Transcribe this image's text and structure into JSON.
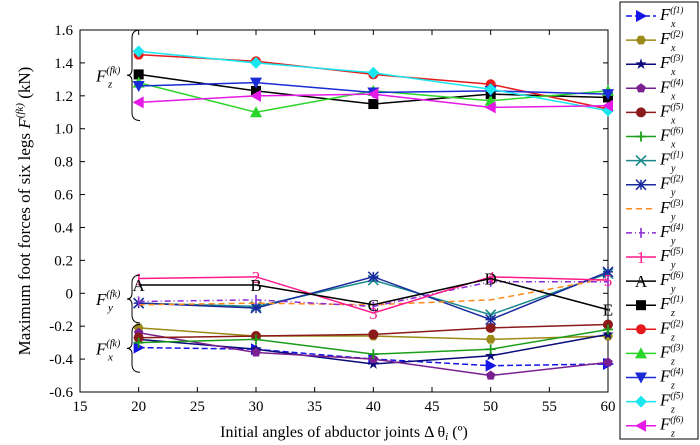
{
  "chart_data": {
    "type": "line",
    "title": "",
    "xlabel": "Initial angles of abductor joints Δ θ",
    "xlabel_sub": "i",
    "xlabel_unit": " (º)",
    "ylabel_main": "Maximum foot forces of six legs ",
    "ylabel_F": "F",
    "ylabel_sup": "(fk)",
    "ylabel_unit": " (kN)",
    "x": [
      20,
      30,
      40,
      50,
      60
    ],
    "xlim": [
      15,
      60
    ],
    "ylim": [
      -0.6,
      1.6
    ],
    "xticks": [
      "15",
      "20",
      "25",
      "30",
      "35",
      "40",
      "45",
      "50",
      "55",
      "60"
    ],
    "yticks": [
      "-0.6",
      "-0.4",
      "-0.2",
      "0",
      "0.2",
      "0.4",
      "0.6",
      "0.8",
      "1.0",
      "1.2",
      "1.4",
      "1.6"
    ],
    "groups": [
      {
        "base": "F",
        "sub": "z",
        "sup": "(fk)"
      },
      {
        "base": "F",
        "sub": "y",
        "sup": "(fk)"
      },
      {
        "base": "F",
        "sub": "x",
        "sup": "(fk)"
      }
    ],
    "series": [
      {
        "name": "F_x(f1)",
        "base": "F",
        "sub": "x",
        "sup": "(f1)",
        "color": "#1515e6",
        "marker": "triright",
        "dash": "6,3",
        "values": [
          -0.33,
          -0.34,
          -0.4,
          -0.44,
          -0.43
        ]
      },
      {
        "name": "F_x(f2)",
        "base": "F",
        "sub": "x",
        "sup": "(f2)",
        "color": "#9b8a17",
        "marker": "hexagon",
        "dash": "",
        "values": [
          -0.21,
          -0.26,
          -0.26,
          -0.28,
          -0.26
        ]
      },
      {
        "name": "F_x(f3)",
        "base": "F",
        "sub": "x",
        "sup": "(f3)",
        "color": "#0a0a7a",
        "marker": "star",
        "dash": "",
        "values": [
          -0.28,
          -0.34,
          -0.43,
          -0.38,
          -0.25
        ]
      },
      {
        "name": "F_x(f4)",
        "base": "F",
        "sub": "x",
        "sup": "(f4)",
        "color": "#7a2090",
        "marker": "pentagon",
        "dash": "",
        "values": [
          -0.24,
          -0.36,
          -0.4,
          -0.5,
          -0.42
        ]
      },
      {
        "name": "F_x(f5)",
        "base": "F",
        "sub": "x",
        "sup": "(f5)",
        "color": "#8b1a1a",
        "marker": "circle",
        "dash": "",
        "values": [
          -0.27,
          -0.26,
          -0.25,
          -0.21,
          -0.19
        ]
      },
      {
        "name": "F_x(f6)",
        "base": "F",
        "sub": "x",
        "sup": "(f6)",
        "color": "#1a9e1a",
        "marker": "plus",
        "dash": "",
        "values": [
          -0.3,
          -0.28,
          -0.37,
          -0.34,
          -0.22
        ]
      },
      {
        "name": "F_y(f1)",
        "base": "F",
        "sub": "y",
        "sup": "(f1)",
        "color": "#1a8a8a",
        "marker": "cross",
        "dash": "",
        "values": [
          -0.06,
          -0.08,
          0.08,
          -0.13,
          0.12
        ]
      },
      {
        "name": "F_y(f2)",
        "base": "F",
        "sub": "y",
        "sup": "(f2)",
        "color": "#1a2a9e",
        "marker": "asterisk",
        "dash": "",
        "values": [
          -0.06,
          -0.09,
          0.1,
          -0.16,
          0.13
        ]
      },
      {
        "name": "F_y(f3)",
        "base": "F",
        "sub": "y",
        "sup": "(f3)",
        "color": "#ff8a1a",
        "marker": "none",
        "dash": "6,4",
        "values": [
          -0.07,
          -0.06,
          -0.07,
          -0.04,
          0.09
        ]
      },
      {
        "name": "F_y(f4)",
        "base": "F",
        "sub": "y",
        "sup": "(f4)",
        "color": "#8a2ad6",
        "marker": "tick",
        "dash": "6,3,1,3",
        "values": [
          -0.05,
          -0.04,
          -0.08,
          0.07,
          0.07
        ]
      },
      {
        "name": "F_y(f5)",
        "base": "F",
        "sub": "y",
        "sup": "(f5)",
        "color": "#ff1a8a",
        "marker": "digit",
        "label": "1",
        "dash": "",
        "values": [
          0.09,
          0.1,
          -0.12,
          0.1,
          0.08
        ]
      },
      {
        "name": "F_y(f6)",
        "base": "F",
        "sub": "y",
        "sup": "(f6)",
        "color": "#000000",
        "marker": "letter",
        "label": "A",
        "dash": "",
        "values": [
          0.05,
          0.05,
          -0.07,
          0.09,
          -0.1
        ]
      },
      {
        "name": "F_z(f1)",
        "base": "F",
        "sub": "z",
        "sup": "(f1)",
        "color": "#000000",
        "marker": "square",
        "dash": "",
        "values": [
          1.33,
          1.23,
          1.15,
          1.21,
          1.19
        ]
      },
      {
        "name": "F_z(f2)",
        "base": "F",
        "sub": "z",
        "sup": "(f2)",
        "color": "#e61a1a",
        "marker": "circle",
        "dash": "",
        "values": [
          1.45,
          1.41,
          1.33,
          1.27,
          1.12
        ]
      },
      {
        "name": "F_z(f3)",
        "base": "F",
        "sub": "z",
        "sup": "(f3)",
        "color": "#2ad62a",
        "marker": "triup",
        "dash": "",
        "values": [
          1.28,
          1.1,
          1.23,
          1.17,
          1.23
        ]
      },
      {
        "name": "F_z(f4)",
        "base": "F",
        "sub": "z",
        "sup": "(f4)",
        "color": "#1a2ad6",
        "marker": "tridown",
        "dash": "",
        "values": [
          1.26,
          1.28,
          1.22,
          1.23,
          1.21
        ]
      },
      {
        "name": "F_z(f5)",
        "base": "F",
        "sub": "z",
        "sup": "(f5)",
        "color": "#1ae6f0",
        "marker": "diamond",
        "dash": "",
        "values": [
          1.47,
          1.4,
          1.34,
          1.24,
          1.11
        ]
      },
      {
        "name": "F_z(f6)",
        "base": "F",
        "sub": "z",
        "sup": "(f6)",
        "color": "#e61ae6",
        "marker": "trileft",
        "dash": "",
        "values": [
          1.16,
          1.2,
          1.21,
          1.13,
          1.14
        ]
      }
    ],
    "point_labels": {
      "F_y(f5)": [
        "1",
        "2",
        "3",
        "4",
        "5"
      ],
      "F_y(f6)": [
        "A",
        "B",
        "C",
        "D",
        "E"
      ]
    }
  }
}
